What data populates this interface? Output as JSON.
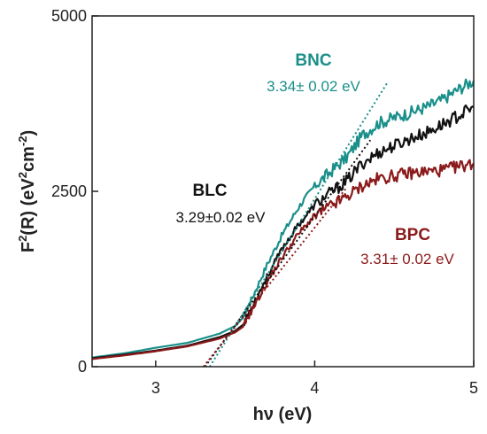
{
  "chart_data": {
    "type": "line",
    "xlabel": "hν (eV)",
    "ylabel": "F²(R) (eV²cm⁻²)",
    "ylabel_parts": {
      "a": "F",
      "b": "2",
      "c": "(R) (eV",
      "d": "2",
      "e": "cm",
      "f": "-2",
      "g": ")"
    },
    "xlim": [
      2.6,
      5.0
    ],
    "ylim": [
      0,
      5000
    ],
    "xticks": [
      3,
      4,
      5
    ],
    "yticks": [
      0,
      2500,
      5000
    ],
    "grid": false,
    "series": [
      {
        "name": "BNC",
        "annotation": "3.34± 0.02 eV",
        "color": "#1a8f8a",
        "x": [
          2.6,
          2.8,
          3.0,
          3.2,
          3.4,
          3.5,
          3.55,
          3.6,
          3.7,
          3.8,
          3.9,
          4.0,
          4.1,
          4.2,
          4.3,
          4.4,
          4.5,
          4.6,
          4.7,
          4.8,
          4.9,
          5.0
        ],
        "y": [
          130,
          190,
          270,
          340,
          470,
          580,
          700,
          950,
          1450,
          1900,
          2280,
          2580,
          2780,
          2980,
          3300,
          3470,
          3550,
          3620,
          3700,
          3800,
          3950,
          4080
        ],
        "tangent": {
          "x": [
            3.34,
            4.46
          ],
          "y": [
            0,
            4060
          ]
        }
      },
      {
        "name": "BLC",
        "annotation": "3.29±0.02 eV",
        "color": "#111111",
        "x": [
          2.6,
          2.8,
          3.0,
          3.2,
          3.4,
          3.5,
          3.55,
          3.6,
          3.7,
          3.8,
          3.9,
          4.0,
          4.1,
          4.2,
          4.3,
          4.4,
          4.5,
          4.6,
          4.7,
          4.8,
          4.9,
          5.0
        ],
        "y": [
          120,
          170,
          230,
          300,
          420,
          510,
          600,
          830,
          1280,
          1700,
          2030,
          2300,
          2480,
          2640,
          2900,
          3050,
          3150,
          3250,
          3330,
          3450,
          3570,
          3700
        ],
        "tangent": {
          "x": [
            3.31,
            4.35
          ],
          "y": [
            0,
            3230
          ]
        }
      },
      {
        "name": "BPC",
        "annotation": "3.31± 0.02 eV",
        "color": "#8b1a1a",
        "x": [
          2.6,
          2.8,
          3.0,
          3.2,
          3.4,
          3.5,
          3.55,
          3.6,
          3.7,
          3.8,
          3.9,
          4.0,
          4.1,
          4.2,
          4.3,
          4.4,
          4.5,
          4.6,
          4.7,
          4.8,
          4.9,
          5.0
        ],
        "y": [
          110,
          160,
          220,
          290,
          400,
          490,
          570,
          780,
          1200,
          1580,
          1900,
          2150,
          2290,
          2420,
          2580,
          2680,
          2720,
          2760,
          2780,
          2800,
          2850,
          2900
        ],
        "tangent": {
          "x": [
            3.3,
            4.2
          ],
          "y": [
            0,
            2550
          ]
        }
      }
    ]
  }
}
